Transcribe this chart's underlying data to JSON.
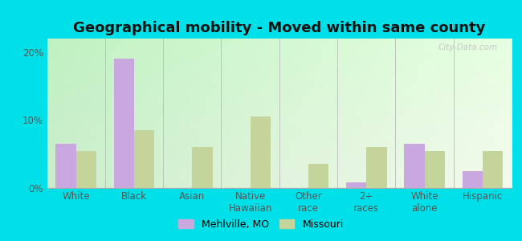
{
  "title": "Geographical mobility - Moved within same county",
  "categories": [
    "White",
    "Black",
    "Asian",
    "Native\nHawaiian",
    "Other\nrace",
    "2+\nraces",
    "White\nalone",
    "Hispanic"
  ],
  "mehlville_values": [
    6.5,
    19.0,
    0.0,
    0.0,
    0.0,
    0.8,
    6.5,
    2.5
  ],
  "missouri_values": [
    5.5,
    8.5,
    6.0,
    10.5,
    3.5,
    6.0,
    5.5,
    5.5
  ],
  "mehlville_color": "#c9a8e0",
  "missouri_color": "#c5d49a",
  "ylim": [
    0,
    22
  ],
  "yticks": [
    0,
    10,
    20
  ],
  "ytick_labels": [
    "0%",
    "10%",
    "20%"
  ],
  "legend_mehlville": "Mehlville, MO",
  "legend_missouri": "Missouri",
  "outer_bg": "#00e0e8",
  "bar_width": 0.35,
  "title_fontsize": 13,
  "tick_fontsize": 8.5,
  "watermark": "City-Data.com"
}
